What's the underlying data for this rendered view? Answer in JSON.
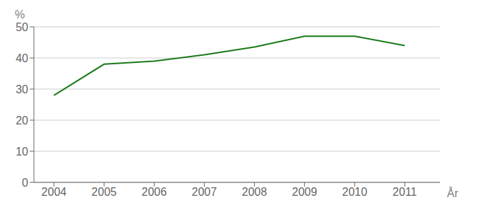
{
  "chart_data": {
    "type": "line",
    "x": [
      2004,
      2005,
      2006,
      2007,
      2008,
      2009,
      2010,
      2011
    ],
    "values": [
      28.0,
      38.0,
      39.0,
      41.0,
      43.5,
      47.0,
      47.0,
      44.0
    ],
    "color": "#1a7a1a",
    "xlim": [
      2003.6,
      2011.7
    ],
    "xticks": [
      2004,
      2005,
      2006,
      2007,
      2008,
      2009,
      2010,
      2011
    ],
    "ylim": [
      0,
      50
    ],
    "yticks": [
      0,
      10,
      20,
      30,
      40,
      50
    ],
    "grid": true,
    "xlabel": "År",
    "ylabel": "%"
  }
}
